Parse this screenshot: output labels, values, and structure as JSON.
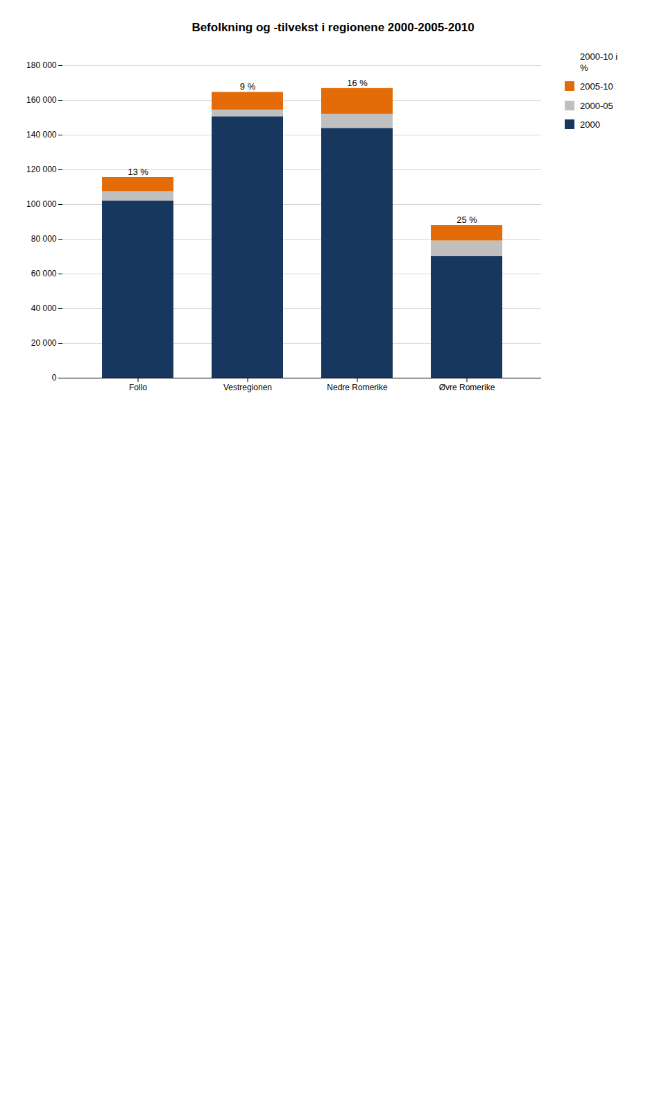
{
  "chart_data": {
    "type": "bar",
    "title": "Befolkning og -tilvekst i regionene 2000-2005-2010",
    "categories": [
      "Follo",
      "Vestregionen",
      "Nedre Romerike",
      "Øvre Romerike"
    ],
    "series": [
      {
        "name": "2000",
        "color": "#17375E",
        "values": [
          102138,
          150647,
          143906,
          70141
        ]
      },
      {
        "name": "2000-05",
        "color": "#C0C0C0",
        "values": [
          5279,
          3816,
          8142,
          8884
        ]
      },
      {
        "name": "2005-10",
        "color": "#E36C09",
        "values": [
          8200,
          10202,
          14814,
          8944
        ]
      }
    ],
    "stacked": true,
    "pct_change_name": "2000-10 i\n%",
    "pct_change": [
      13,
      9,
      16,
      25
    ],
    "pct_change_labels": [
      "13 %",
      "9 %",
      "16 %",
      "25 %"
    ],
    "ylim": [
      0,
      180000
    ],
    "yticks": [
      0,
      {
        "value": 20000,
        "label": "20 000"
      },
      {
        "value": 40000,
        "label": "40 000"
      },
      {
        "value": 60000,
        "label": "60 000"
      },
      {
        "value": 80000,
        "label": "80 000"
      },
      {
        "value": 100000,
        "label": "100 000"
      },
      {
        "value": 120000,
        "label": "120 000"
      },
      {
        "value": 140000,
        "label": "140 000"
      },
      {
        "value": 160000,
        "label": "160 000"
      },
      {
        "value": 180000,
        "label": "180 000"
      }
    ],
    "grid": true,
    "legend": "right"
  }
}
